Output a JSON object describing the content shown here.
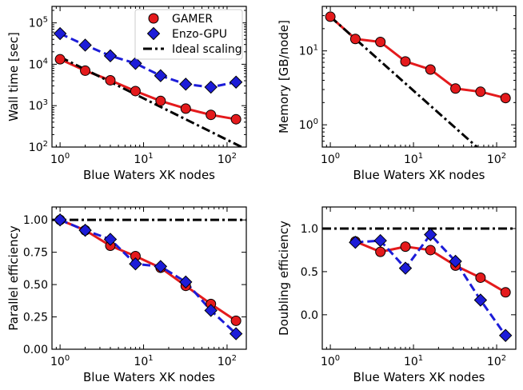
{
  "chart_data": [
    {
      "id": "walltime",
      "type": "line",
      "xscale": "log",
      "yscale": "log",
      "xlim": [
        0.8,
        170
      ],
      "ylim": [
        100,
        250000
      ],
      "xlabel": "Blue Waters XK nodes",
      "ylabel": "Wall time [sec]",
      "x_ticks": [
        {
          "v": 1,
          "label": "10",
          "exp": "0"
        },
        {
          "v": 10,
          "label": "10",
          "exp": "1"
        },
        {
          "v": 100,
          "label": "10",
          "exp": "2"
        }
      ],
      "y_ticks": [
        {
          "v": 100,
          "label": "10",
          "exp": "2"
        },
        {
          "v": 1000,
          "label": "10",
          "exp": "3"
        },
        {
          "v": 10000,
          "label": "10",
          "exp": "4"
        },
        {
          "v": 100000,
          "label": "10",
          "exp": "5"
        }
      ],
      "legend": {
        "position": "top-right",
        "entries": [
          "GAMER",
          "Enzo-GPU",
          "Ideal scaling"
        ]
      },
      "series": [
        {
          "name": "GAMER",
          "style": "solid-circle",
          "color": "#e41a1c",
          "x": [
            1,
            2,
            4,
            8,
            16,
            32,
            64,
            128
          ],
          "y": [
            13200,
            7000,
            4100,
            2250,
            1300,
            850,
            600,
            470
          ]
        },
        {
          "name": "Enzo-GPU",
          "style": "dashed-diamond",
          "color": "#1c1cd8",
          "x": [
            1,
            2,
            4,
            8,
            16,
            32,
            64,
            128
          ],
          "y": [
            55000,
            29000,
            16000,
            10500,
            5300,
            3300,
            2800,
            3700
          ]
        },
        {
          "name": "Ideal scaling",
          "style": "dashdot",
          "color": "#000000",
          "x": [
            1,
            170
          ],
          "y": [
            15000,
            88
          ]
        }
      ]
    },
    {
      "id": "memory",
      "type": "line",
      "xscale": "log",
      "yscale": "log",
      "xlim": [
        0.8,
        170
      ],
      "ylim": [
        0.5,
        40
      ],
      "xlabel": "Blue Waters XK nodes",
      "ylabel": "Memory [GB/node]",
      "x_ticks": [
        {
          "v": 1,
          "label": "10",
          "exp": "0"
        },
        {
          "v": 10,
          "label": "10",
          "exp": "1"
        },
        {
          "v": 100,
          "label": "10",
          "exp": "2"
        }
      ],
      "y_ticks": [
        {
          "v": 1,
          "label": "10",
          "exp": "0"
        },
        {
          "v": 10,
          "label": "10",
          "exp": "1"
        }
      ],
      "series": [
        {
          "name": "GAMER",
          "style": "solid-circle",
          "color": "#e41a1c",
          "x": [
            1,
            2,
            4,
            8,
            16,
            32,
            64,
            128
          ],
          "y": [
            29,
            14.5,
            13.2,
            7.2,
            5.6,
            3.1,
            2.8,
            2.3
          ]
        },
        {
          "name": "Ideal scaling",
          "style": "dashdot",
          "color": "#000000",
          "x": [
            1,
            58
          ],
          "y": [
            29,
            0.5
          ]
        }
      ]
    },
    {
      "id": "parallel",
      "type": "line",
      "xscale": "log",
      "yscale": "linear",
      "xlim": [
        0.8,
        170
      ],
      "ylim": [
        0,
        1.1
      ],
      "xlabel": "Blue Waters XK nodes",
      "ylabel": "Parallel efficiency",
      "x_ticks": [
        {
          "v": 1,
          "label": "10",
          "exp": "0"
        },
        {
          "v": 10,
          "label": "10",
          "exp": "1"
        },
        {
          "v": 100,
          "label": "10",
          "exp": "2"
        }
      ],
      "y_ticks": [
        {
          "v": 0,
          "label": "0.00"
        },
        {
          "v": 0.25,
          "label": "0.25"
        },
        {
          "v": 0.5,
          "label": "0.50"
        },
        {
          "v": 0.75,
          "label": "0.75"
        },
        {
          "v": 1.0,
          "label": "1.00"
        }
      ],
      "series": [
        {
          "name": "GAMER",
          "style": "solid-circle",
          "color": "#e41a1c",
          "x": [
            1,
            2,
            4,
            8,
            16,
            32,
            64,
            128
          ],
          "y": [
            1.0,
            0.92,
            0.8,
            0.72,
            0.63,
            0.49,
            0.35,
            0.22
          ]
        },
        {
          "name": "Enzo-GPU",
          "style": "dashed-diamond",
          "color": "#1c1cd8",
          "x": [
            1,
            2,
            4,
            8,
            16,
            32,
            64,
            128
          ],
          "y": [
            1.0,
            0.92,
            0.85,
            0.66,
            0.64,
            0.52,
            0.3,
            0.12
          ]
        },
        {
          "name": "Ideal scaling",
          "style": "dashdot",
          "color": "#000000",
          "x": [
            0.8,
            170
          ],
          "y": [
            1.0,
            1.0
          ]
        }
      ]
    },
    {
      "id": "doubling",
      "type": "line",
      "xscale": "log",
      "yscale": "linear",
      "xlim": [
        0.8,
        170
      ],
      "ylim": [
        -0.4,
        1.25
      ],
      "xlabel": "Blue Waters XK nodes",
      "ylabel": "Doubling efficiency",
      "x_ticks": [
        {
          "v": 1,
          "label": "10",
          "exp": "0"
        },
        {
          "v": 10,
          "label": "10",
          "exp": "1"
        },
        {
          "v": 100,
          "label": "10",
          "exp": "2"
        }
      ],
      "y_ticks": [
        {
          "v": 0,
          "label": "0.0"
        },
        {
          "v": 0.5,
          "label": "0.5"
        },
        {
          "v": 1.0,
          "label": "1.0"
        }
      ],
      "series": [
        {
          "name": "GAMER",
          "style": "solid-circle",
          "color": "#e41a1c",
          "x": [
            2,
            4,
            8,
            16,
            32,
            64,
            128
          ],
          "y": [
            0.85,
            0.73,
            0.79,
            0.75,
            0.57,
            0.43,
            0.26
          ]
        },
        {
          "name": "Enzo-GPU",
          "style": "dashed-diamond",
          "color": "#1c1cd8",
          "x": [
            2,
            4,
            8,
            16,
            32,
            64,
            128
          ],
          "y": [
            0.84,
            0.86,
            0.54,
            0.93,
            0.62,
            0.17,
            -0.24
          ]
        },
        {
          "name": "Ideal scaling",
          "style": "dashdot",
          "color": "#000000",
          "x": [
            0.8,
            170
          ],
          "y": [
            1.0,
            1.0
          ]
        }
      ]
    }
  ]
}
